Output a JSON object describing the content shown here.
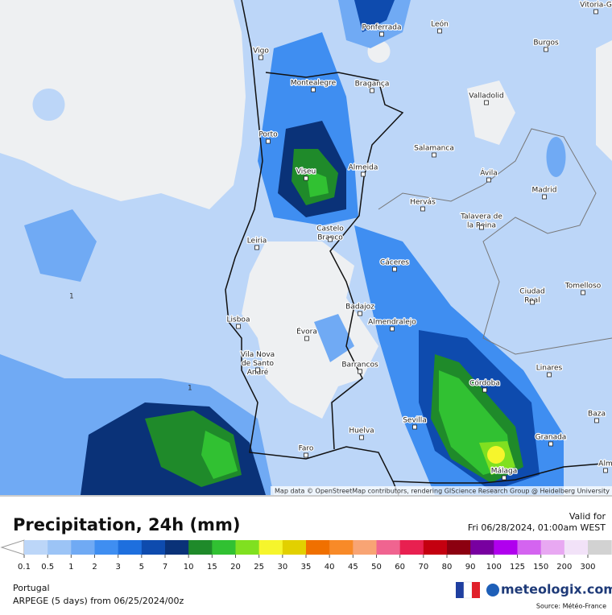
{
  "map": {
    "cities": [
      "Vitoria-G",
      "Ponferrada",
      "León",
      "Burgos",
      "Vigo",
      "Montealegre",
      "Bragança",
      "Valladolid",
      "Porto",
      "Salamanca",
      "Viseu",
      "Almeida",
      "Ávila",
      "Madrid",
      "Hervás",
      "Talavera de la Reina",
      "Castelo Branco",
      "Leiria",
      "Cáceres",
      "Ciudad Real",
      "Tomelloso",
      "Lisboa",
      "Badajoz",
      "Almendralejo",
      "Évora",
      "Vila Nova de Santo André",
      "Barrancos",
      "Linares",
      "Córdoba",
      "Sevilla",
      "Huelva",
      "Baza",
      "Granada",
      "Faro",
      "Málaga",
      "Alm"
    ],
    "contour_labels": [
      "1",
      "1"
    ],
    "attribution": "Map data © OpenStreetMap contributors, rendering GIScience Research Group @ Heidelberg University"
  },
  "header": {
    "title": "Precipitation, 24h (mm)",
    "valid_label": "Valid for",
    "valid_time": "Fri 06/28/2024, 01:00am WEST"
  },
  "legend": {
    "thresholds": [
      0.1,
      0.5,
      1,
      2,
      3,
      5,
      7,
      10,
      15,
      20,
      25,
      30,
      35,
      40,
      45,
      50,
      60,
      70,
      80,
      90,
      100,
      125,
      150,
      200,
      300
    ],
    "colors": [
      "#bcd6f8",
      "#9cc4f6",
      "#70aaf4",
      "#3f8ef1",
      "#1e6fde",
      "#0e4bae",
      "#0a3278",
      "#1f8a2a",
      "#31c132",
      "#80e020",
      "#f6f52c",
      "#e2d000",
      "#f07000",
      "#f88a28",
      "#f8a474",
      "#f06490",
      "#e82050",
      "#c40010",
      "#8c0010",
      "#7800a0",
      "#b000ee",
      "#d464f0",
      "#e8a8f2",
      "#f2e2f8",
      "#d2d2d2"
    ]
  },
  "footer": {
    "region": "Portugal",
    "model": "ARPEGE (5 days) from 06/25/2024/00z",
    "brand": "meteologix.com",
    "source": "Source: Météo-France"
  }
}
